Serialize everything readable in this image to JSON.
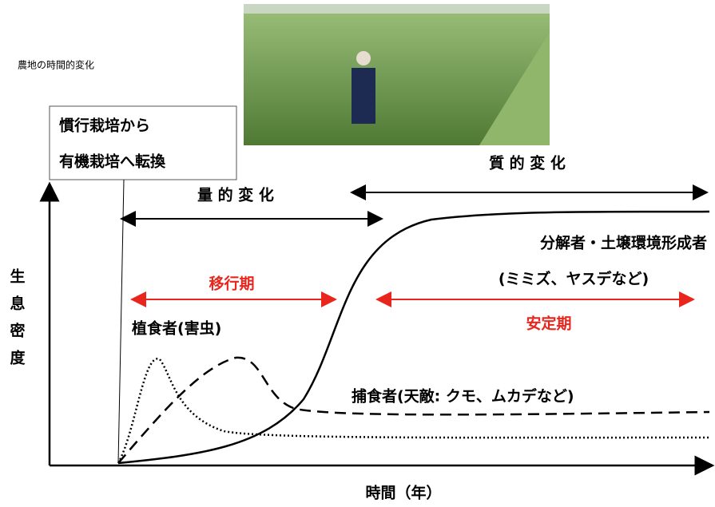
{
  "caption": "農地の時間的変化",
  "conversion": {
    "line1": "慣行栽培から",
    "line2": "有機栽培へ転換"
  },
  "qualitative_change": "質 的 変 化",
  "quantitative_change": "量 的 変 化",
  "decomposers": {
    "label": "分解者・土壌環境形成者",
    "examples": "(ミミズ、ヤスデなど)"
  },
  "transition_period": "移行期",
  "stable_period": "安定期",
  "herbivores": "植食者(害虫)",
  "predators": "捕食者(天敵:  クモ、ムカデなど)",
  "y_axis_label": [
    "生",
    "息",
    "密",
    "度"
  ],
  "x_axis_label": "時間（年）"
}
